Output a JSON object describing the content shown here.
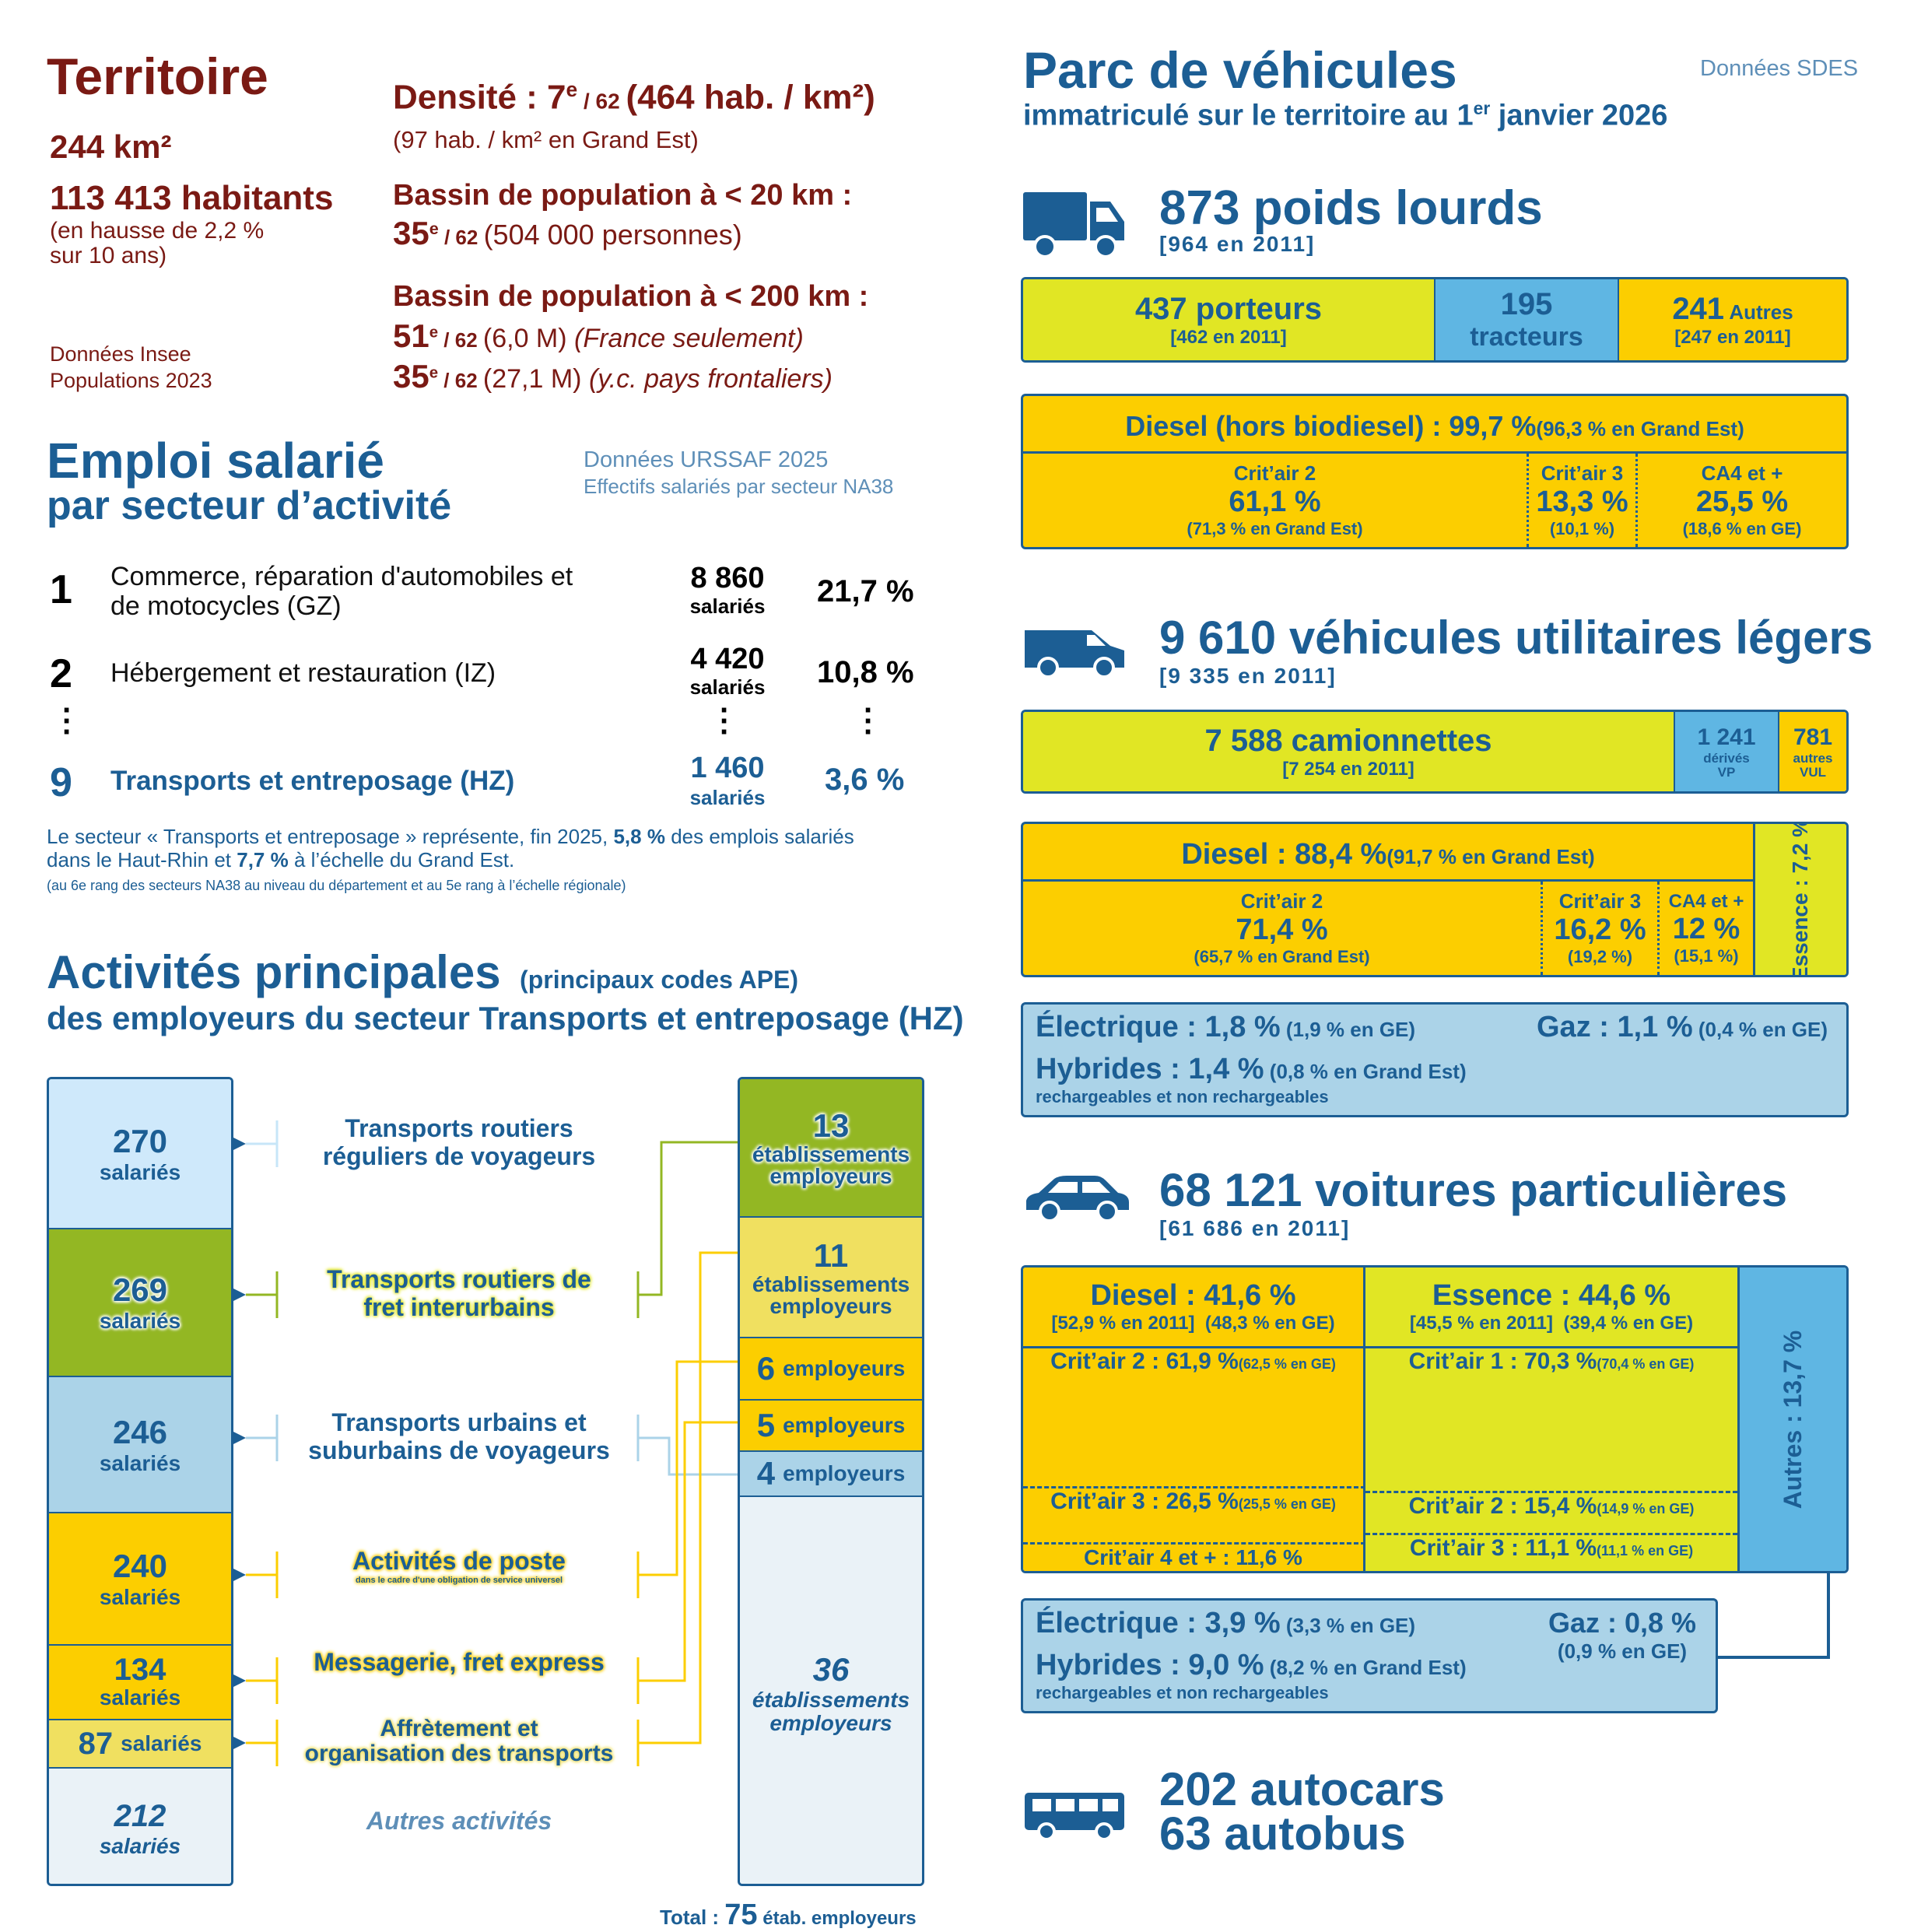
{
  "territoire": {
    "title": "Territoire",
    "area": "244 km²",
    "population": "113 413 habitants",
    "population_note_1": "(en hausse de 2,2 %",
    "population_note_2": "sur 10 ans)",
    "source_1": "Données Insee",
    "source_2": "Populations 2023",
    "densite_label": "Densité : 7",
    "densite_rank_sup": "e",
    "densite_rank_of": " / 62 ",
    "densite_value": "(464 hab. / km²)",
    "densite_note": "(97 hab. / km² en Grand Est)",
    "bassin20_label": "Bassin de population à < 20 km :",
    "bassin20_rank": "35",
    "bassin20_sup": "e",
    "bassin20_of": " / 62 ",
    "bassin20_value": "(504 000 personnes)",
    "bassin200_label": "Bassin de population à < 200 km :",
    "bassin200_rank1": "51",
    "bassin200_sup1": "e",
    "bassin200_of1": " / 62 ",
    "bassin200_value1": "(6,0 M) ",
    "bassin200_note1": "(France seulement)",
    "bassin200_rank2": "35",
    "bassin200_sup2": "e",
    "bassin200_of2": " / 62 ",
    "bassin200_value2": "(27,1 M) ",
    "bassin200_note2": "(y.c. pays frontaliers)"
  },
  "emploi": {
    "title_1": "Emploi salarié",
    "title_2": "par secteur d’activité",
    "source_1": "Données URSSAF 2025",
    "source_2": "Effectifs salariés par secteur NA38",
    "rows": [
      {
        "rank": "1",
        "label_1": "Commerce, réparation d'automobiles et",
        "label_2": "de motocycles (GZ)",
        "count": "8 860",
        "unit": "salariés",
        "pct": "21,7 %"
      },
      {
        "rank": "2",
        "label_1": "Hébergement et restauration (IZ)",
        "label_2": "",
        "count": "4 420",
        "unit": "salariés",
        "pct": "10,8 %"
      },
      {
        "rank": "9",
        "label_1": "Transports et entreposage (HZ)",
        "label_2": "",
        "count": "1 460",
        "unit": "salariés",
        "pct": "3,6 %"
      }
    ],
    "note_1a": "Le secteur « Transports et entreposage » représente, fin 2025, ",
    "note_1b": "5,8 %",
    "note_1c": " des emplois salariés",
    "note_2a": "dans le Haut-Rhin et ",
    "note_2b": "7,7 %",
    "note_2c": " à l’échelle du Grand Est.",
    "note_3": "(au 6e rang des secteurs NA38 au niveau du département et au 5e rang à l’échelle régionale)"
  },
  "activites": {
    "title_1": "Activités principales",
    "title_1b": "(principaux codes APE)",
    "title_2": "des employeurs du secteur Transports et entreposage (HZ)",
    "salaries": [
      {
        "count": "270",
        "unit": "salariés"
      },
      {
        "count": "269",
        "unit": "salariés"
      },
      {
        "count": "246",
        "unit": "salariés"
      },
      {
        "count": "240",
        "unit": "salariés"
      },
      {
        "count": "134",
        "unit": "salariés"
      },
      {
        "count": "87",
        "unit": "salariés"
      },
      {
        "count": "212",
        "unit": "salariés"
      }
    ],
    "labels": [
      {
        "line1": "Transports routiers",
        "line2": "réguliers de voyageurs"
      },
      {
        "line1": "Transports routiers de",
        "line2": "fret interurbains"
      },
      {
        "line1": "Transports urbains et",
        "line2": "suburbains de voyageurs"
      },
      {
        "line1": "Activités de poste",
        "line2": "dans le cadre d'une obligation de service universel"
      },
      {
        "line1": "Messagerie, fret express",
        "line2": ""
      },
      {
        "line1": "Affrètement et",
        "line2": "organisation des transports"
      },
      {
        "line1": "Autres activités",
        "line2": ""
      }
    ],
    "etabs": [
      {
        "count": "13",
        "line1": "établissements",
        "line2": "employeurs"
      },
      {
        "count": "11",
        "line1": "établissements",
        "line2": "employeurs"
      },
      {
        "count": "6",
        "line1": "employeurs",
        "line2": ""
      },
      {
        "count": "5",
        "line1": "employeurs",
        "line2": ""
      },
      {
        "count": "4",
        "line1": "employeurs",
        "line2": ""
      },
      {
        "count": "36",
        "line1": "établissements",
        "line2": "employeurs"
      }
    ],
    "total_label": "Total : ",
    "total_value": "75",
    "total_unit": " étab. employeurs"
  },
  "parc": {
    "title": "Parc de véhicules",
    "subtitle_a": "immatriculé sur le territoire au 1",
    "subtitle_sup": "er",
    "subtitle_b": " janvier 2026",
    "source": "Données SDES",
    "pl": {
      "title": "873 poids lourds",
      "ref": "[964 en 2011]",
      "porteurs": "437 porteurs",
      "porteurs_ref": "[462 en 2011]",
      "tracteurs_n": "195",
      "tracteurs": "tracteurs",
      "autres_n": "241",
      "autres": " Autres",
      "autres_ref": "[247 en 2011]",
      "diesel": "Diesel (hors biodiesel) : 99,7 %",
      "diesel_ge": " (96,3 % en Grand Est)",
      "c2_l": "Crit’air 2",
      "c2_v": "61,1 %",
      "c2_ge": "(71,3 % en Grand Est)",
      "c3_l": "Crit’air 3",
      "c3_v": "13,3 %",
      "c3_ge": "(10,1 %)",
      "c4_l": "CA4 et +",
      "c4_v": "25,5 %",
      "c4_ge": "(18,6 % en GE)"
    },
    "vul": {
      "title": "9 610 véhicules utilitaires légers",
      "ref": "[9 335 en 2011]",
      "cam": "7 588 camionnettes",
      "cam_ref": "[7 254 en 2011]",
      "der_n": "1 241",
      "der_1": "dérivés",
      "der_2": "VP",
      "aut_n": "781",
      "aut_1": "autres",
      "aut_2": "VUL",
      "diesel": "Diesel : 88,4 %",
      "diesel_ge": " (91,7 % en Grand Est)",
      "essence": "Essence : 7,2 %",
      "c2_l": "Crit’air 2",
      "c2_v": "71,4 %",
      "c2_ge": "(65,7 % en Grand Est)",
      "c3_l": "Crit’air 3",
      "c3_v": "16,2 %",
      "c3_ge": "(19,2 %)",
      "c4_l": "CA4 et +",
      "c4_v": "12 %",
      "c4_ge": "(15,1 %)",
      "elec": "Électrique : 1,8 %",
      "elec_ge": " (1,9 % en GE)",
      "gaz": "Gaz : 1,1 %",
      "gaz_ge": " (0,4 % en GE)",
      "hyb": "Hybrides : 1,4 %",
      "hyb_ge": " (0,8 % en Grand Est)",
      "hyb_note": "rechargeables et non rechargeables"
    },
    "vp": {
      "title": "68 121 voitures particulières",
      "ref": "[61 686 en 2011]",
      "diesel": "Diesel : 41,6 %",
      "diesel_ref": "[52,9 % en 2011]  (48,3 % en GE)",
      "essence": "Essence : 44,6 %",
      "essence_ref": "[45,5 % en 2011]  (39,4 % en GE)",
      "autres": "Autres : 13,7 %",
      "d_c2": "Crit’air 2 : 61,9 %",
      "d_c2_ge": " (62,5 % en GE)",
      "d_c3": "Crit’air 3 : 26,5 %",
      "d_c3_ge": " (25,5 % en GE)",
      "d_c4": "Crit’air 4 et + : 11,6 %",
      "e_c1": "Crit’air 1 : 70,3 %",
      "e_c1_ge": " (70,4 % en GE)",
      "e_c2": "Crit’air 2 : 15,4 %",
      "e_c2_ge": " (14,9 % en GE)",
      "e_c3": "Crit’air 3 : 11,1 %",
      "e_c3_ge": " (11,1 % en GE)",
      "elec": "Électrique : 3,9 %",
      "elec_ge": " (3,3 % en GE)",
      "gaz": "Gaz : 0,8 %",
      "gaz_ge": "(0,9 % en GE)",
      "hyb": "Hybrides : 9,0 %",
      "hyb_ge": " (8,2 % en Grand Est)",
      "hyb_note": "rechargeables et non rechargeables"
    },
    "bus": {
      "autocars": "202 autocars",
      "autobus": "63 autobus"
    }
  },
  "colors": {
    "red": "#7a1a14",
    "blue": "#1c5e94",
    "yellow": "#fcce00",
    "lime": "#e1e624",
    "sky": "#5fb6e3",
    "pale_blue": "#abd3e8",
    "olive": "#93b723"
  },
  "icons": [
    "truck-icon",
    "van-icon",
    "car-icon",
    "bus-icon"
  ]
}
